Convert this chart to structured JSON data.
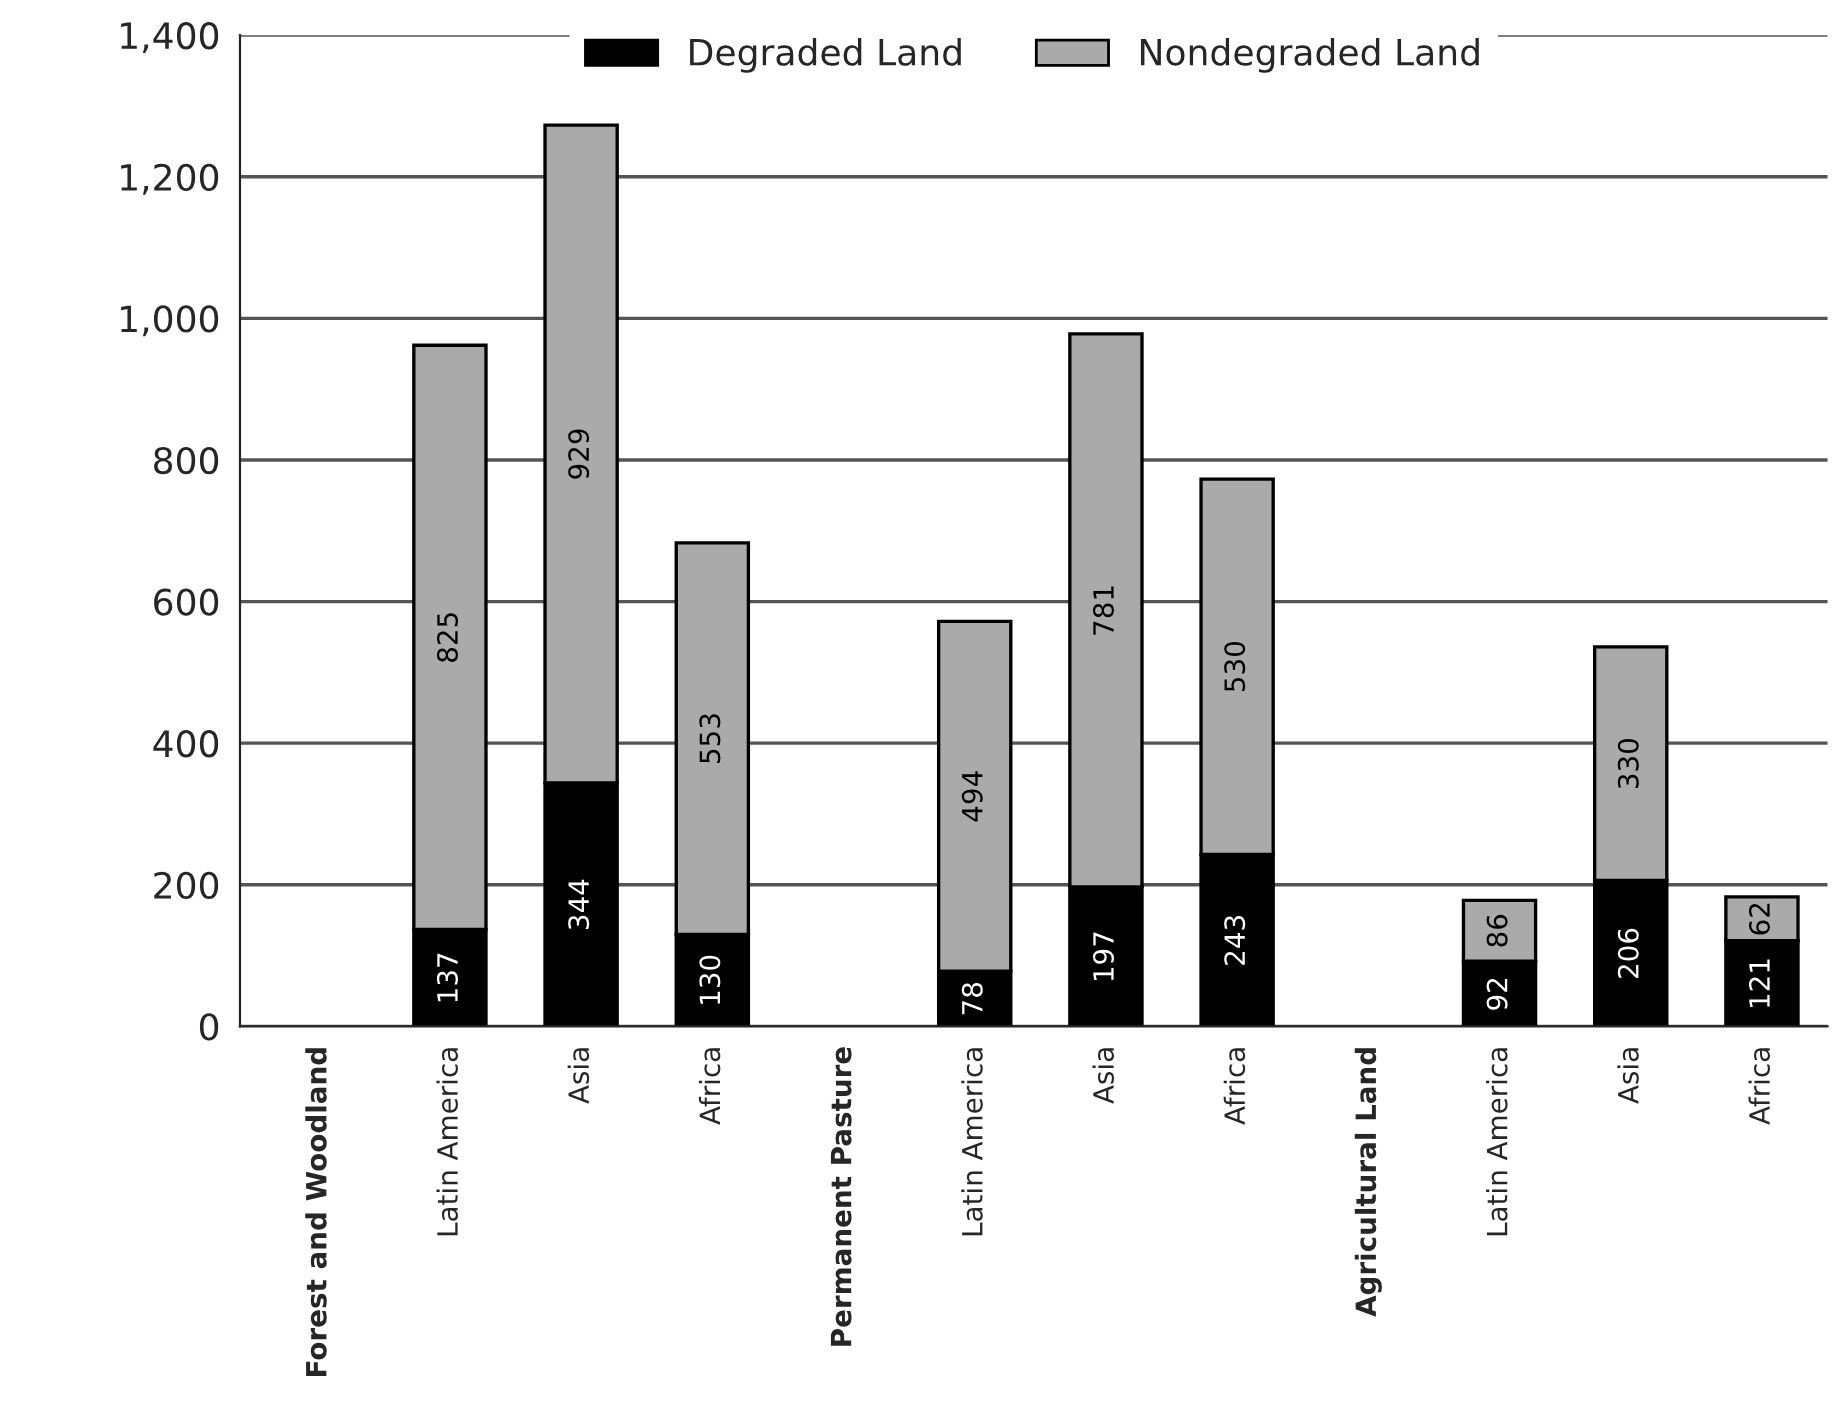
{
  "chart_data": {
    "type": "bar",
    "stacked": true,
    "categories": [
      "Forest and Woodland",
      "Latin America",
      "Asia",
      "Africa",
      "Permanent Pasture",
      "Latin America",
      "Asia",
      "Africa",
      "Agricultural Land",
      "Latin America",
      "Asia",
      "Africa"
    ],
    "series": [
      {
        "name": "Degraded Land",
        "color": "#000000",
        "values": [
          null,
          137,
          344,
          130,
          null,
          78,
          197,
          243,
          null,
          92,
          206,
          121
        ]
      },
      {
        "name": "Nondegraded Land",
        "color": "#aaaaaa",
        "values": [
          null,
          825,
          929,
          553,
          null,
          494,
          781,
          530,
          null,
          86,
          330,
          62
        ]
      }
    ],
    "ylim": [
      0,
      1400
    ],
    "yticks": [
      0,
      {
        "value": 200,
        "label": "200"
      },
      {
        "value": 400,
        "label": "400"
      },
      {
        "value": 600,
        "label": "600"
      },
      {
        "value": 800,
        "label": "800"
      },
      {
        "value": 1000,
        "label": "1,000"
      },
      {
        "value": 1200,
        "label": "1,200"
      },
      {
        "value": 1400,
        "label": "1,400"
      }
    ],
    "grid": "y",
    "legend": "top",
    "data_labels": true
  }
}
